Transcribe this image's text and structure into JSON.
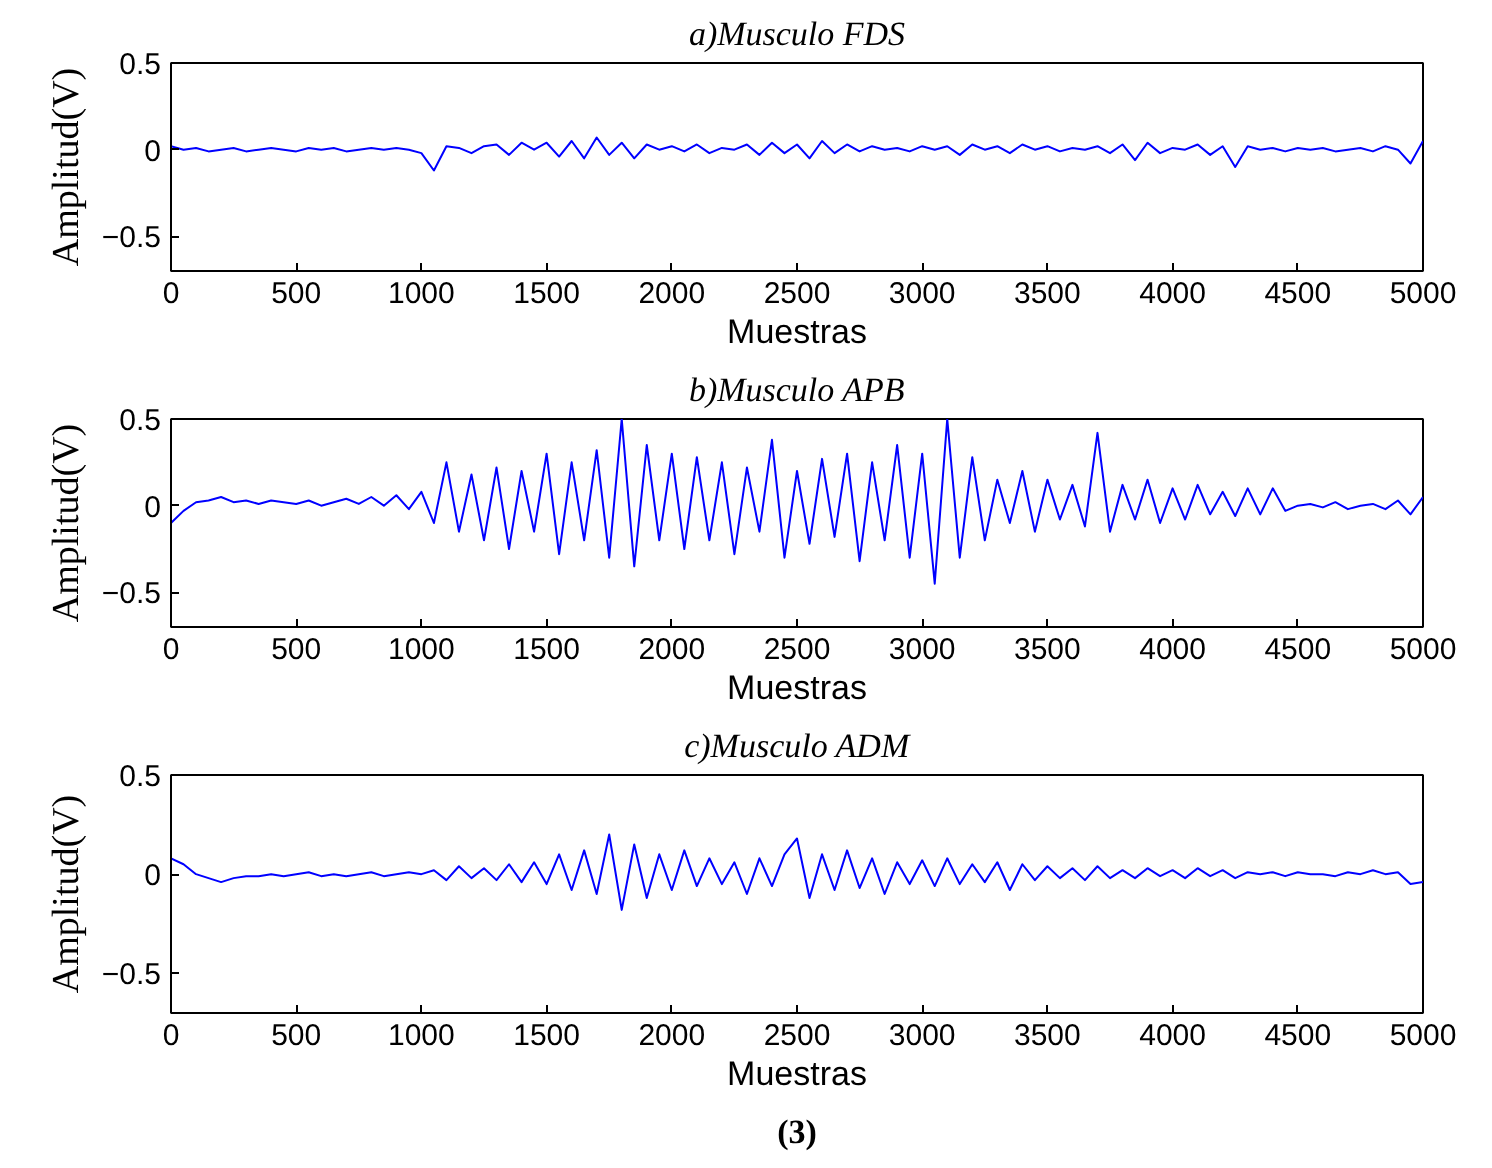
{
  "chart_data": [
    {
      "type": "line",
      "title": "a)Musculo FDS",
      "xlabel": "Muestras",
      "ylabel": "Amplitud(V)",
      "xlim": [
        0,
        5000
      ],
      "ylim": [
        -0.7,
        0.5
      ],
      "xticks": [
        0,
        500,
        1000,
        1500,
        2000,
        2500,
        3000,
        3500,
        4000,
        4500,
        5000
      ],
      "yticks": [
        -0.5,
        0,
        0.5
      ],
      "grid": false,
      "x": [
        0,
        50,
        100,
        150,
        200,
        250,
        300,
        350,
        400,
        450,
        500,
        550,
        600,
        650,
        700,
        750,
        800,
        850,
        900,
        950,
        1000,
        1050,
        1100,
        1150,
        1200,
        1250,
        1300,
        1350,
        1400,
        1450,
        1500,
        1550,
        1600,
        1650,
        1700,
        1750,
        1800,
        1850,
        1900,
        1950,
        2000,
        2050,
        2100,
        2150,
        2200,
        2250,
        2300,
        2350,
        2400,
        2450,
        2500,
        2550,
        2600,
        2650,
        2700,
        2750,
        2800,
        2850,
        2900,
        2950,
        3000,
        3050,
        3100,
        3150,
        3200,
        3250,
        3300,
        3350,
        3400,
        3450,
        3500,
        3550,
        3600,
        3650,
        3700,
        3750,
        3800,
        3850,
        3900,
        3950,
        4000,
        4050,
        4100,
        4150,
        4200,
        4250,
        4300,
        4350,
        4400,
        4450,
        4500,
        4550,
        4600,
        4650,
        4700,
        4750,
        4800,
        4850,
        4900,
        4950,
        5000
      ],
      "series": [
        {
          "color": "#0000ff",
          "values": [
            0.02,
            0.0,
            0.01,
            -0.01,
            0.0,
            0.01,
            -0.01,
            0.0,
            0.01,
            0.0,
            -0.01,
            0.01,
            0.0,
            0.01,
            -0.01,
            0.0,
            0.01,
            0.0,
            0.01,
            0.0,
            -0.02,
            -0.12,
            0.02,
            0.01,
            -0.02,
            0.02,
            0.03,
            -0.03,
            0.04,
            0.0,
            0.04,
            -0.04,
            0.05,
            -0.05,
            0.07,
            -0.03,
            0.04,
            -0.05,
            0.03,
            0.0,
            0.02,
            -0.01,
            0.03,
            -0.02,
            0.01,
            0.0,
            0.03,
            -0.03,
            0.04,
            -0.02,
            0.03,
            -0.05,
            0.05,
            -0.02,
            0.03,
            -0.01,
            0.02,
            0.0,
            0.01,
            -0.01,
            0.02,
            0.0,
            0.02,
            -0.03,
            0.03,
            0.0,
            0.02,
            -0.02,
            0.03,
            0.0,
            0.02,
            -0.01,
            0.01,
            0.0,
            0.02,
            -0.02,
            0.03,
            -0.06,
            0.04,
            -0.02,
            0.01,
            0.0,
            0.03,
            -0.03,
            0.02,
            -0.1,
            0.02,
            0.0,
            0.01,
            -0.01,
            0.01,
            0.0,
            0.01,
            -0.01,
            0.0,
            0.01,
            -0.01,
            0.02,
            0.0,
            -0.08,
            0.05
          ]
        }
      ]
    },
    {
      "type": "line",
      "title": "b)Musculo APB",
      "xlabel": "Muestras",
      "ylabel": "Amplitud(V)",
      "xlim": [
        0,
        5000
      ],
      "ylim": [
        -0.7,
        0.5
      ],
      "xticks": [
        0,
        500,
        1000,
        1500,
        2000,
        2500,
        3000,
        3500,
        4000,
        4500,
        5000
      ],
      "yticks": [
        -0.5,
        0,
        0.5
      ],
      "grid": false,
      "x": [
        0,
        50,
        100,
        150,
        200,
        250,
        300,
        350,
        400,
        450,
        500,
        550,
        600,
        650,
        700,
        750,
        800,
        850,
        900,
        950,
        1000,
        1050,
        1100,
        1150,
        1200,
        1250,
        1300,
        1350,
        1400,
        1450,
        1500,
        1550,
        1600,
        1650,
        1700,
        1750,
        1800,
        1850,
        1900,
        1950,
        2000,
        2050,
        2100,
        2150,
        2200,
        2250,
        2300,
        2350,
        2400,
        2450,
        2500,
        2550,
        2600,
        2650,
        2700,
        2750,
        2800,
        2850,
        2900,
        2950,
        3000,
        3050,
        3100,
        3150,
        3200,
        3250,
        3300,
        3350,
        3400,
        3450,
        3500,
        3550,
        3600,
        3650,
        3700,
        3750,
        3800,
        3850,
        3900,
        3950,
        4000,
        4050,
        4100,
        4150,
        4200,
        4250,
        4300,
        4350,
        4400,
        4450,
        4500,
        4550,
        4600,
        4650,
        4700,
        4750,
        4800,
        4850,
        4900,
        4950,
        5000
      ],
      "series": [
        {
          "color": "#0000ff",
          "values": [
            -0.1,
            -0.03,
            0.02,
            0.03,
            0.05,
            0.02,
            0.03,
            0.01,
            0.03,
            0.02,
            0.01,
            0.03,
            0.0,
            0.02,
            0.04,
            0.01,
            0.05,
            0.0,
            0.06,
            -0.02,
            0.08,
            -0.1,
            0.25,
            -0.15,
            0.18,
            -0.2,
            0.22,
            -0.25,
            0.2,
            -0.15,
            0.3,
            -0.28,
            0.25,
            -0.2,
            0.32,
            -0.3,
            0.5,
            -0.35,
            0.35,
            -0.2,
            0.3,
            -0.25,
            0.28,
            -0.2,
            0.25,
            -0.28,
            0.22,
            -0.15,
            0.38,
            -0.3,
            0.2,
            -0.22,
            0.27,
            -0.18,
            0.3,
            -0.32,
            0.25,
            -0.2,
            0.35,
            -0.3,
            0.3,
            -0.45,
            0.5,
            -0.3,
            0.28,
            -0.2,
            0.15,
            -0.1,
            0.2,
            -0.15,
            0.15,
            -0.08,
            0.12,
            -0.12,
            0.42,
            -0.15,
            0.12,
            -0.08,
            0.15,
            -0.1,
            0.1,
            -0.08,
            0.12,
            -0.05,
            0.08,
            -0.06,
            0.1,
            -0.05,
            0.1,
            -0.03,
            0.0,
            0.01,
            -0.01,
            0.02,
            -0.02,
            0.0,
            0.01,
            -0.02,
            0.03,
            -0.05,
            0.05
          ]
        }
      ]
    },
    {
      "type": "line",
      "title": "c)Musculo ADM",
      "xlabel": "Muestras",
      "ylabel": "Amplitud(V)",
      "xlim": [
        0,
        5000
      ],
      "ylim": [
        -0.7,
        0.5
      ],
      "xticks": [
        0,
        500,
        1000,
        1500,
        2000,
        2500,
        3000,
        3500,
        4000,
        4500,
        5000
      ],
      "yticks": [
        -0.5,
        0,
        0.5
      ],
      "grid": false,
      "annotations": [
        "(3)"
      ],
      "x": [
        0,
        50,
        100,
        150,
        200,
        250,
        300,
        350,
        400,
        450,
        500,
        550,
        600,
        650,
        700,
        750,
        800,
        850,
        900,
        950,
        1000,
        1050,
        1100,
        1150,
        1200,
        1250,
        1300,
        1350,
        1400,
        1450,
        1500,
        1550,
        1600,
        1650,
        1700,
        1750,
        1800,
        1850,
        1900,
        1950,
        2000,
        2050,
        2100,
        2150,
        2200,
        2250,
        2300,
        2350,
        2400,
        2450,
        2500,
        2550,
        2600,
        2650,
        2700,
        2750,
        2800,
        2850,
        2900,
        2950,
        3000,
        3050,
        3100,
        3150,
        3200,
        3250,
        3300,
        3350,
        3400,
        3450,
        3500,
        3550,
        3600,
        3650,
        3700,
        3750,
        3800,
        3850,
        3900,
        3950,
        4000,
        4050,
        4100,
        4150,
        4200,
        4250,
        4300,
        4350,
        4400,
        4450,
        4500,
        4550,
        4600,
        4650,
        4700,
        4750,
        4800,
        4850,
        4900,
        4950,
        5000
      ],
      "series": [
        {
          "color": "#0000ff",
          "values": [
            0.08,
            0.05,
            0.0,
            -0.02,
            -0.04,
            -0.02,
            -0.01,
            -0.01,
            0.0,
            -0.01,
            0.0,
            0.01,
            -0.01,
            0.0,
            -0.01,
            0.0,
            0.01,
            -0.01,
            0.0,
            0.01,
            0.0,
            0.02,
            -0.03,
            0.04,
            -0.02,
            0.03,
            -0.03,
            0.05,
            -0.04,
            0.06,
            -0.05,
            0.1,
            -0.08,
            0.12,
            -0.1,
            0.2,
            -0.18,
            0.15,
            -0.12,
            0.1,
            -0.08,
            0.12,
            -0.06,
            0.08,
            -0.05,
            0.06,
            -0.1,
            0.08,
            -0.06,
            0.1,
            0.18,
            -0.12,
            0.1,
            -0.08,
            0.12,
            -0.07,
            0.08,
            -0.1,
            0.06,
            -0.05,
            0.07,
            -0.06,
            0.08,
            -0.05,
            0.05,
            -0.04,
            0.06,
            -0.08,
            0.05,
            -0.03,
            0.04,
            -0.02,
            0.03,
            -0.03,
            0.04,
            -0.02,
            0.02,
            -0.02,
            0.03,
            -0.01,
            0.02,
            -0.02,
            0.03,
            -0.01,
            0.02,
            -0.02,
            0.01,
            0.0,
            0.01,
            -0.01,
            0.01,
            0.0,
            0.0,
            -0.01,
            0.01,
            0.0,
            0.02,
            0.0,
            0.01,
            -0.05,
            -0.04
          ]
        }
      ]
    }
  ]
}
